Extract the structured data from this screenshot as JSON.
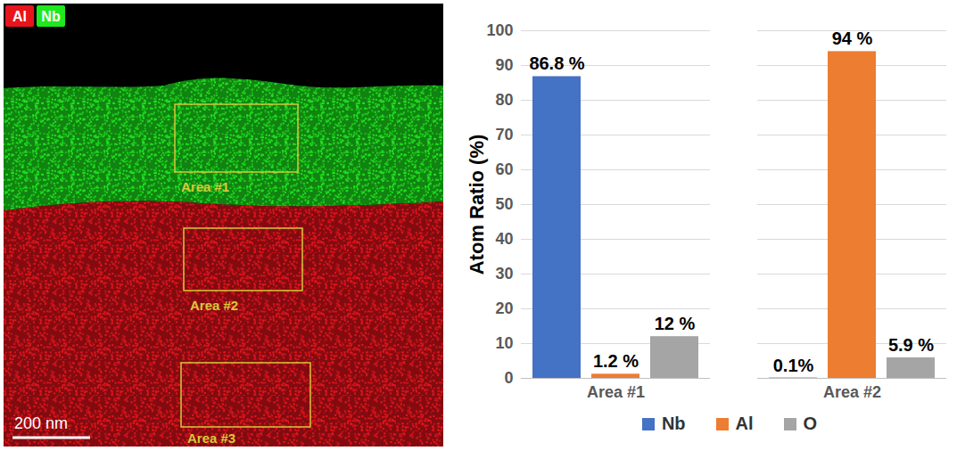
{
  "chart_data": {
    "type": "bar",
    "categories": [
      "Area #1",
      "Area #2"
    ],
    "series": [
      {
        "name": "Nb",
        "color": "#4472c4",
        "values": [
          86.8,
          0.1
        ],
        "value_labels": [
          "86.8 %",
          "0.1%"
        ]
      },
      {
        "name": "Al",
        "color": "#ed7d31",
        "values": [
          1.2,
          94
        ],
        "value_labels": [
          "1.2 %",
          "94 %"
        ]
      },
      {
        "name": "O",
        "color": "#a5a5a5",
        "values": [
          12,
          5.9
        ],
        "value_labels": [
          "12 %",
          "5.9 %"
        ]
      }
    ],
    "y_label": "Atom Ratio (%)",
    "ylim": [
      0,
      100
    ],
    "yticks": [
      0,
      10,
      20,
      30,
      40,
      50,
      60,
      70,
      80,
      90,
      100
    ],
    "grid": true,
    "legend": "bottom",
    "data_labels": true
  },
  "map_panel": {
    "element_legend": [
      {
        "name": "Al",
        "color": "#e8141c"
      },
      {
        "name": "Nb",
        "color": "#1ee81e"
      }
    ],
    "areas": [
      "Area #1",
      "Area #2",
      "Area #3"
    ],
    "scale_bar": "200 nm"
  }
}
